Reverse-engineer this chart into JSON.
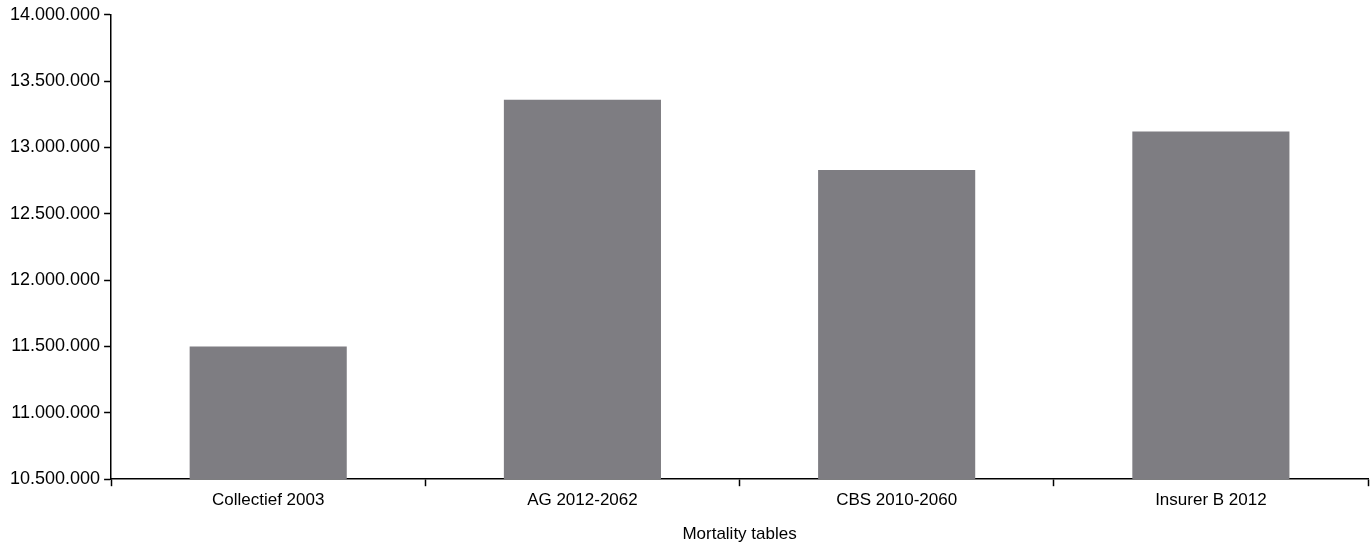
{
  "chart_data": {
    "type": "bar",
    "xlabel": "Mortality tables",
    "categories": [
      "Collectief 2003",
      "AG 2012-2062",
      "CBS 2010-2060",
      "Insurer B 2012"
    ],
    "values": [
      11500000,
      13360000,
      12830000,
      13120000
    ],
    "color": "#7e7d82",
    "ylim": [
      10500000,
      14000000
    ],
    "yticks": [
      {
        "value": 10500000,
        "label": "10.500.000"
      },
      {
        "value": 11000000,
        "label": "11.000.000"
      },
      {
        "value": 11500000,
        "label": "11.500.000"
      },
      {
        "value": 12000000,
        "label": "12.000.000"
      },
      {
        "value": 12500000,
        "label": "12.500.000"
      },
      {
        "value": 13000000,
        "label": "13.000.000"
      },
      {
        "value": 13500000,
        "label": "13.500.000"
      },
      {
        "value": 14000000,
        "label": "14.000.000"
      }
    ],
    "grid": false,
    "legend": false
  }
}
